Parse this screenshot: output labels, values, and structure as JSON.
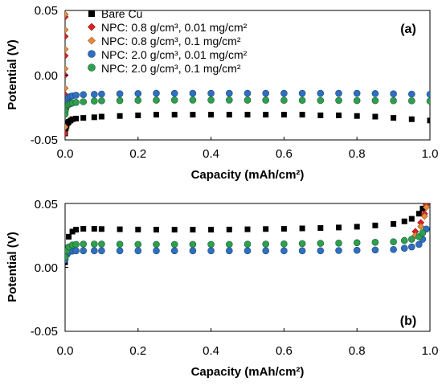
{
  "chart_data": [
    {
      "type": "scatter",
      "panel_label": "(a)",
      "xlabel": "Capacity (mAh/cm²)",
      "ylabel": "Potential (V)",
      "xlim": [
        0.0,
        1.0
      ],
      "ylim": [
        -0.05,
        0.05
      ],
      "x_ticks": [
        "0.0",
        "0.2",
        "0.4",
        "0.6",
        "0.8",
        "1.0"
      ],
      "y_ticks": [
        "0.05",
        "0.00",
        "-0.05"
      ],
      "grid": false,
      "legend_position": "top-left",
      "series": [
        {
          "name": "Bare Cu",
          "color": "#000000",
          "marker": "square",
          "x": [
            0.0,
            0.002,
            0.004,
            0.007,
            0.01,
            0.015,
            0.02,
            0.03,
            0.05,
            0.08,
            0.1,
            0.15,
            0.2,
            0.25,
            0.3,
            0.35,
            0.4,
            0.45,
            0.5,
            0.55,
            0.6,
            0.65,
            0.7,
            0.75,
            0.8,
            0.85,
            0.9,
            0.95,
            1.0
          ],
          "y": [
            -0.045,
            -0.041,
            -0.039,
            -0.037,
            -0.036,
            -0.035,
            -0.034,
            -0.0335,
            -0.033,
            -0.0325,
            -0.032,
            -0.0315,
            -0.031,
            -0.0305,
            -0.0305,
            -0.0305,
            -0.0305,
            -0.0305,
            -0.0305,
            -0.0305,
            -0.0305,
            -0.0305,
            -0.031,
            -0.031,
            -0.0315,
            -0.032,
            -0.033,
            -0.034,
            -0.035
          ]
        },
        {
          "name": "NPC: 0.8 g/cm³, 0.01 mg/cm²",
          "color": "#e02020",
          "marker": "diamond",
          "x": [
            0.0,
            0.0,
            0.0,
            0.0,
            0.0,
            0.0,
            0.0
          ],
          "y": [
            0.045,
            0.03,
            0.015,
            0.0,
            -0.015,
            -0.03,
            -0.045
          ]
        },
        {
          "name": "NPC: 0.8 g/cm³, 0.1 mg/cm²",
          "color": "#e88a3a",
          "marker": "diamond",
          "x": [
            0.0,
            0.0,
            0.0,
            0.0,
            0.0,
            0.0,
            0.0
          ],
          "y": [
            0.047,
            0.035,
            0.02,
            0.005,
            -0.01,
            -0.025,
            -0.04
          ]
        },
        {
          "name": "NPC: 2.0 g/cm³, 0.01 mg/cm²",
          "color": "#2f6fc0",
          "marker": "circle",
          "x": [
            0.0,
            0.002,
            0.004,
            0.007,
            0.01,
            0.015,
            0.02,
            0.03,
            0.05,
            0.08,
            0.1,
            0.15,
            0.2,
            0.25,
            0.3,
            0.35,
            0.4,
            0.45,
            0.5,
            0.55,
            0.6,
            0.65,
            0.7,
            0.75,
            0.8,
            0.85,
            0.9,
            0.95,
            1.0
          ],
          "y": [
            -0.028,
            -0.023,
            -0.02,
            -0.018,
            -0.017,
            -0.0165,
            -0.016,
            -0.0155,
            -0.015,
            -0.0148,
            -0.0146,
            -0.0144,
            -0.0142,
            -0.014,
            -0.014,
            -0.014,
            -0.014,
            -0.014,
            -0.014,
            -0.014,
            -0.014,
            -0.014,
            -0.014,
            -0.014,
            -0.014,
            -0.0142,
            -0.0144,
            -0.0146,
            -0.0148
          ]
        },
        {
          "name": "NPC: 2.0 g/cm³, 0.1 mg/cm²",
          "color": "#2e9e4f",
          "marker": "circle",
          "x": [
            0.0,
            0.002,
            0.004,
            0.007,
            0.01,
            0.015,
            0.02,
            0.03,
            0.05,
            0.08,
            0.1,
            0.15,
            0.2,
            0.25,
            0.3,
            0.35,
            0.4,
            0.45,
            0.5,
            0.55,
            0.6,
            0.65,
            0.7,
            0.75,
            0.8,
            0.85,
            0.9,
            0.95,
            1.0
          ],
          "y": [
            -0.03,
            -0.026,
            -0.024,
            -0.023,
            -0.0225,
            -0.022,
            -0.0215,
            -0.021,
            -0.0205,
            -0.02,
            -0.0198,
            -0.0196,
            -0.0194,
            -0.0193,
            -0.0192,
            -0.0192,
            -0.0192,
            -0.0192,
            -0.0193,
            -0.0193,
            -0.0194,
            -0.0194,
            -0.0195,
            -0.0195,
            -0.0196,
            -0.0196,
            -0.0197,
            -0.0198,
            -0.02
          ]
        }
      ]
    },
    {
      "type": "scatter",
      "panel_label": "(b)",
      "xlabel": "Capacity (mAh/cm²)",
      "ylabel": "Potential (V)",
      "xlim": [
        0.0,
        1.0
      ],
      "ylim": [
        -0.05,
        0.05
      ],
      "x_ticks": [
        "0.0",
        "0.2",
        "0.4",
        "0.6",
        "0.8",
        "1.0"
      ],
      "y_ticks": [
        "0.05",
        "0.00",
        "-0.05"
      ],
      "grid": false,
      "series": [
        {
          "name": "Bare Cu",
          "color": "#000000",
          "marker": "square",
          "x": [
            0.0,
            0.005,
            0.01,
            0.02,
            0.03,
            0.05,
            0.08,
            0.1,
            0.15,
            0.2,
            0.25,
            0.3,
            0.35,
            0.4,
            0.45,
            0.5,
            0.55,
            0.6,
            0.65,
            0.7,
            0.75,
            0.8,
            0.85,
            0.9,
            0.93,
            0.95,
            0.97,
            0.98
          ],
          "y": [
            0.004,
            0.015,
            0.024,
            0.028,
            0.0295,
            0.0302,
            0.0302,
            0.03,
            0.0298,
            0.0296,
            0.0295,
            0.0295,
            0.0295,
            0.0295,
            0.0296,
            0.0298,
            0.03,
            0.0302,
            0.0305,
            0.0308,
            0.0312,
            0.0318,
            0.0328,
            0.034,
            0.036,
            0.038,
            0.042,
            0.046
          ]
        },
        {
          "name": "NPC: 0.8 g/cm³, 0.01 mg/cm²",
          "color": "#e02020",
          "marker": "diamond",
          "x": [
            0.96,
            0.975,
            0.985,
            0.99
          ],
          "y": [
            0.028,
            0.035,
            0.042,
            0.049
          ]
        },
        {
          "name": "NPC: 0.8 g/cm³, 0.1 mg/cm²",
          "color": "#e88a3a",
          "marker": "diamond",
          "x": [
            0.96,
            0.975,
            0.985,
            0.99
          ],
          "y": [
            0.025,
            0.032,
            0.04,
            0.047
          ]
        },
        {
          "name": "NPC: 2.0 g/cm³, 0.01 mg/cm²",
          "color": "#2f6fc0",
          "marker": "circle",
          "x": [
            0.0,
            0.005,
            0.01,
            0.02,
            0.03,
            0.05,
            0.08,
            0.1,
            0.15,
            0.2,
            0.25,
            0.3,
            0.35,
            0.4,
            0.45,
            0.5,
            0.55,
            0.6,
            0.65,
            0.7,
            0.75,
            0.8,
            0.85,
            0.9,
            0.93,
            0.95,
            0.97,
            0.98,
            0.99
          ],
          "y": [
            0.006,
            0.01,
            0.012,
            0.0128,
            0.013,
            0.013,
            0.013,
            0.013,
            0.013,
            0.013,
            0.013,
            0.013,
            0.013,
            0.013,
            0.013,
            0.013,
            0.013,
            0.013,
            0.013,
            0.013,
            0.0132,
            0.0134,
            0.0136,
            0.014,
            0.015,
            0.016,
            0.018,
            0.022,
            0.03
          ]
        },
        {
          "name": "NPC: 2.0 g/cm³, 0.1 mg/cm²",
          "color": "#2e9e4f",
          "marker": "circle",
          "x": [
            0.0,
            0.005,
            0.01,
            0.02,
            0.03,
            0.05,
            0.08,
            0.1,
            0.15,
            0.2,
            0.25,
            0.3,
            0.35,
            0.4,
            0.45,
            0.5,
            0.55,
            0.6,
            0.65,
            0.7,
            0.75,
            0.8,
            0.85,
            0.9,
            0.93,
            0.95,
            0.97,
            0.98
          ],
          "y": [
            0.008,
            0.013,
            0.016,
            0.0175,
            0.018,
            0.0182,
            0.0182,
            0.0182,
            0.0181,
            0.018,
            0.018,
            0.018,
            0.018,
            0.018,
            0.018,
            0.0181,
            0.0182,
            0.0184,
            0.0186,
            0.0188,
            0.019,
            0.0193,
            0.0196,
            0.02,
            0.021,
            0.022,
            0.024,
            0.027
          ]
        }
      ]
    }
  ]
}
